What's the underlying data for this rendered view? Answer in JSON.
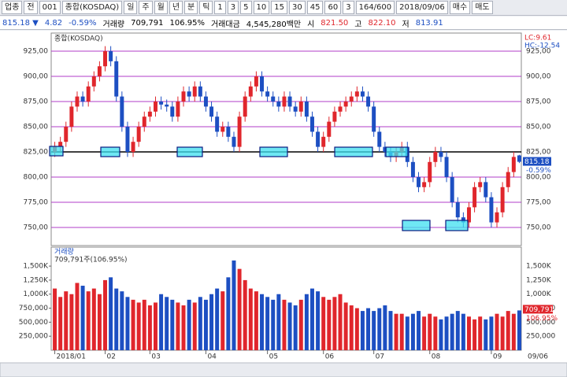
{
  "toolbar": {
    "items": [
      "업종",
      "전",
      "001",
      "종합(KOSDAQ)",
      "일",
      "주",
      "월",
      "년",
      "분",
      "틱",
      "1",
      "3",
      "5",
      "10",
      "15",
      "30",
      "45",
      "60",
      "3",
      "164/600",
      "2018/09/06",
      "매수",
      "매도"
    ]
  },
  "info": {
    "items": [
      "815.18 ▼",
      "4.82",
      "-0.59%",
      "거래량",
      "709,791",
      "106.95%",
      "거래대금",
      "4,545,280백만",
      "시",
      "821.50",
      "고",
      "822.10",
      "저",
      "813.91"
    ]
  },
  "x_end_label": "09/06",
  "chart_data": [
    {
      "type": "candlestick",
      "title": "종합(KOSDAQ)",
      "annotations": [
        "LC:9.61",
        "HC:-12.54"
      ],
      "last_label": "815.18",
      "last_change": "-0.59%",
      "categories": [
        "2018/01",
        null,
        null,
        null,
        null,
        null,
        null,
        null,
        null,
        "02",
        null,
        null,
        null,
        null,
        null,
        null,
        null,
        "03",
        null,
        null,
        null,
        null,
        null,
        null,
        null,
        null,
        null,
        "04",
        null,
        null,
        null,
        null,
        null,
        null,
        null,
        null,
        null,
        null,
        "05",
        null,
        null,
        null,
        null,
        null,
        null,
        null,
        null,
        null,
        "06",
        null,
        null,
        null,
        null,
        null,
        null,
        null,
        null,
        "07",
        null,
        null,
        null,
        null,
        null,
        null,
        null,
        null,
        null,
        "08",
        null,
        null,
        null,
        null,
        null,
        null,
        null,
        null,
        null,
        null,
        "09",
        null,
        null,
        null,
        null,
        null
      ],
      "open": [
        825,
        830,
        835,
        850,
        870,
        880,
        875,
        890,
        900,
        910,
        925,
        915,
        880,
        850,
        825,
        835,
        850,
        860,
        865,
        875,
        872,
        870,
        860,
        875,
        885,
        880,
        890,
        880,
        870,
        860,
        845,
        850,
        840,
        830,
        860,
        880,
        890,
        900,
        885,
        880,
        875,
        870,
        880,
        870,
        865,
        875,
        860,
        845,
        830,
        840,
        855,
        865,
        870,
        875,
        880,
        885,
        880,
        870,
        845,
        830,
        825,
        820,
        825,
        830,
        815,
        800,
        790,
        795,
        815,
        825,
        820,
        800,
        775,
        760,
        755,
        770,
        790,
        795,
        780,
        755,
        765,
        790,
        805,
        821.5
      ],
      "high": [
        835,
        840,
        855,
        875,
        885,
        885,
        895,
        905,
        915,
        930,
        930,
        920,
        885,
        855,
        840,
        855,
        865,
        870,
        880,
        880,
        877,
        875,
        880,
        890,
        890,
        895,
        895,
        885,
        875,
        865,
        855,
        855,
        845,
        865,
        885,
        895,
        905,
        905,
        890,
        885,
        880,
        885,
        885,
        875,
        880,
        880,
        865,
        850,
        845,
        860,
        870,
        875,
        880,
        885,
        890,
        890,
        885,
        875,
        850,
        835,
        830,
        830,
        835,
        835,
        820,
        805,
        800,
        820,
        830,
        830,
        825,
        805,
        780,
        765,
        775,
        795,
        800,
        800,
        785,
        770,
        795,
        810,
        825,
        822.1
      ],
      "low": [
        820,
        825,
        830,
        845,
        865,
        870,
        870,
        885,
        895,
        905,
        910,
        875,
        845,
        820,
        820,
        830,
        845,
        855,
        860,
        867,
        865,
        855,
        855,
        870,
        875,
        875,
        875,
        865,
        855,
        840,
        840,
        835,
        825,
        825,
        855,
        875,
        885,
        880,
        875,
        870,
        865,
        865,
        865,
        860,
        860,
        855,
        840,
        825,
        825,
        835,
        850,
        860,
        865,
        870,
        875,
        875,
        865,
        840,
        825,
        820,
        815,
        815,
        820,
        810,
        795,
        785,
        785,
        790,
        810,
        815,
        795,
        770,
        755,
        750,
        750,
        765,
        785,
        775,
        750,
        750,
        760,
        785,
        800,
        813.91
      ],
      "close": [
        830,
        835,
        850,
        870,
        880,
        875,
        890,
        900,
        910,
        925,
        915,
        880,
        850,
        825,
        835,
        850,
        860,
        865,
        875,
        872,
        870,
        860,
        875,
        885,
        880,
        890,
        880,
        870,
        860,
        845,
        850,
        840,
        830,
        860,
        880,
        890,
        900,
        885,
        880,
        875,
        870,
        880,
        870,
        865,
        875,
        860,
        845,
        830,
        840,
        855,
        865,
        870,
        875,
        880,
        885,
        880,
        870,
        845,
        830,
        825,
        820,
        825,
        830,
        815,
        800,
        790,
        795,
        815,
        825,
        820,
        800,
        775,
        760,
        755,
        770,
        790,
        795,
        780,
        755,
        765,
        790,
        805,
        820,
        815.18
      ],
      "up_color": "#e0262c",
      "down_color": "#1d4fc2",
      "grid": true,
      "grid_color": "#b03cc8",
      "hline": 825,
      "hline_color": "#000000",
      "ylim": [
        732,
        943
      ],
      "yticks": [
        {
          "value": 750,
          "label": "750,00"
        },
        {
          "value": 775,
          "label": "775,00"
        },
        {
          "value": 800,
          "label": "800,00"
        },
        {
          "value": 825,
          "label": "825,00"
        },
        {
          "value": 850,
          "label": "850,00"
        },
        {
          "value": 875,
          "label": "875,00"
        },
        {
          "value": 900,
          "label": "900,00"
        },
        {
          "value": 925,
          "label": "925,00"
        }
      ]
    },
    {
      "type": "bar",
      "title": "거래량",
      "subtitle": "709,791주(106.95%)",
      "last_label": "709,791",
      "last_pct": "106.95%",
      "values": [
        1100000,
        950000,
        1050000,
        1000000,
        1200000,
        1150000,
        1050000,
        1100000,
        1000000,
        1250000,
        1300000,
        1100000,
        1050000,
        950000,
        900000,
        850000,
        900000,
        800000,
        850000,
        1000000,
        950000,
        900000,
        850000,
        800000,
        900000,
        850000,
        950000,
        900000,
        1000000,
        1100000,
        1050000,
        1300000,
        1600000,
        1450000,
        1250000,
        1100000,
        1050000,
        1000000,
        950000,
        900000,
        1000000,
        900000,
        850000,
        800000,
        900000,
        1000000,
        1100000,
        1050000,
        950000,
        900000,
        950000,
        1000000,
        850000,
        800000,
        750000,
        700000,
        750000,
        700000,
        750000,
        800000,
        700000,
        650000,
        650000,
        600000,
        650000,
        700000,
        600000,
        650000,
        600000,
        550000,
        600000,
        650000,
        700000,
        650000,
        600000,
        550000,
        600000,
        550000,
        600000,
        650000,
        600000,
        700000,
        650000,
        709791
      ],
      "ylim": [
        0,
        1838000
      ],
      "yticks": [
        {
          "value": 250000,
          "label": "250,000"
        },
        {
          "value": 500000,
          "label": "500,000"
        },
        {
          "value": 750000,
          "label": "750,000"
        },
        {
          "value": 1000000,
          "label": "1,000K"
        },
        {
          "value": 1250000,
          "label": "1,250K"
        },
        {
          "value": 1500000,
          "label": "1,500K"
        }
      ]
    }
  ]
}
